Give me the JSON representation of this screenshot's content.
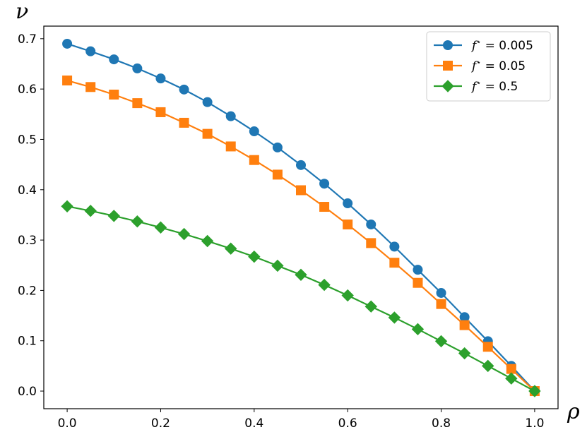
{
  "chart_data": {
    "type": "line",
    "xlabel": "ρ",
    "ylabel": "ν",
    "xlim": [
      -0.05,
      1.05
    ],
    "ylim": [
      -0.035,
      0.725
    ],
    "xticks": [
      "0.0",
      "0.2",
      "0.4",
      "0.6",
      "0.8",
      "1.0"
    ],
    "xtick_values": [
      0.0,
      0.2,
      0.4,
      0.6,
      0.8,
      1.0
    ],
    "yticks": [
      "0.0",
      "0.1",
      "0.2",
      "0.3",
      "0.4",
      "0.5",
      "0.6",
      "0.7"
    ],
    "ytick_values": [
      0.0,
      0.1,
      0.2,
      0.3,
      0.4,
      0.5,
      0.6,
      0.7
    ],
    "grid": false,
    "legend_position": "top-right",
    "x": [
      0.0,
      0.05,
      0.1,
      0.15,
      0.2,
      0.25,
      0.3,
      0.35,
      0.4,
      0.45,
      0.5,
      0.55,
      0.6,
      0.65,
      0.7,
      0.75,
      0.8,
      0.85,
      0.9,
      0.95,
      1.0
    ],
    "series": [
      {
        "name_var": "f",
        "name_sup": "⋆",
        "name_rest": " = 0.005",
        "color": "#1f77b4",
        "marker": "circle",
        "values": [
          0.69,
          0.675,
          0.659,
          0.641,
          0.621,
          0.599,
          0.574,
          0.546,
          0.516,
          0.484,
          0.449,
          0.412,
          0.373,
          0.331,
          0.287,
          0.241,
          0.195,
          0.147,
          0.099,
          0.05,
          0.0
        ]
      },
      {
        "name_var": "f",
        "name_sup": "⋆",
        "name_rest": " = 0.05",
        "color": "#ff7f0e",
        "marker": "square",
        "values": [
          0.617,
          0.604,
          0.589,
          0.572,
          0.554,
          0.533,
          0.511,
          0.486,
          0.459,
          0.43,
          0.399,
          0.366,
          0.331,
          0.294,
          0.255,
          0.215,
          0.173,
          0.131,
          0.088,
          0.044,
          0.0
        ]
      },
      {
        "name_var": "f",
        "name_sup": "⋆",
        "name_rest": " = 0.5",
        "color": "#2ca02c",
        "marker": "diamond",
        "values": [
          0.367,
          0.358,
          0.348,
          0.337,
          0.325,
          0.312,
          0.298,
          0.283,
          0.267,
          0.249,
          0.231,
          0.211,
          0.19,
          0.168,
          0.146,
          0.123,
          0.099,
          0.075,
          0.05,
          0.025,
          0.0
        ]
      }
    ]
  }
}
